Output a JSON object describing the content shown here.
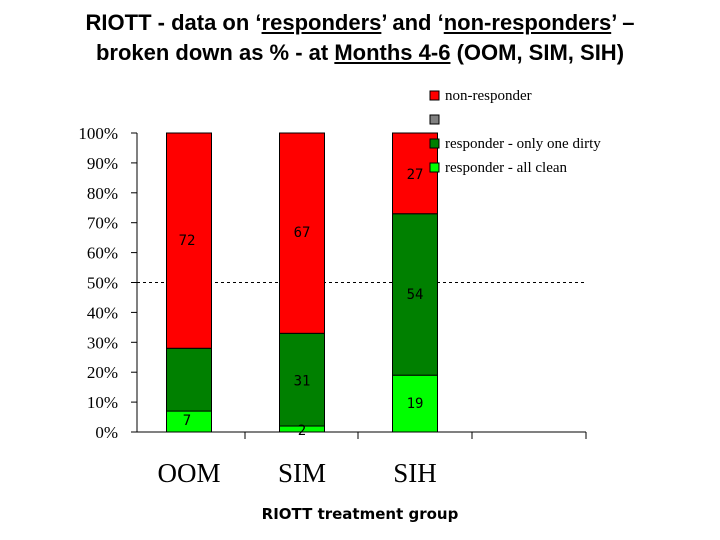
{
  "header": {
    "title_p1": "RIOTT - data on ‘",
    "title_u1": "responders",
    "title_p2": "’ and ‘",
    "title_u2": "non-responders",
    "title_p3": "’ –",
    "title_p4": "broken down as % - at ",
    "title_u3": "Months 4-6",
    "title_p5": " (OOM, SIM, SIH)"
  },
  "chart_data": {
    "type": "bar",
    "stacked": true,
    "title": "RIOTT - data on ‘responders’ and ‘non-responders’ – broken down as % - at Months 4-6 (OOM, SIM, SIH)",
    "xlabel": "RIOTT treatment group",
    "ylabel": "",
    "ylim": [
      0,
      100
    ],
    "yticks": [
      "0%",
      "10%",
      "20%",
      "30%",
      "40%",
      "50%",
      "60%",
      "70%",
      "80%",
      "90%",
      "100%"
    ],
    "categories": [
      "OOM",
      "SIM",
      "SIH"
    ],
    "reference_line": 50,
    "legend_position": "top-right",
    "series": [
      {
        "name": "responder - all clean",
        "color": "#00ff00",
        "values": [
          7,
          2,
          19
        ]
      },
      {
        "name": "responder - only one dirty",
        "color": "#008000",
        "values": [
          21,
          31,
          54
        ]
      },
      {
        "name": "",
        "color": "#808080",
        "values": [
          0,
          0,
          0
        ]
      },
      {
        "name": "non-responder",
        "color": "#ff0000",
        "values": [
          72,
          67,
          27
        ]
      }
    ],
    "data_labels": [
      {
        "category": "OOM",
        "series": "responder - all clean",
        "text": "7"
      },
      {
        "category": "OOM",
        "series": "non-responder",
        "text": "72"
      },
      {
        "category": "SIM",
        "series": "responder - all clean",
        "text": "2"
      },
      {
        "category": "SIM",
        "series": "responder - only one dirty",
        "text": "31"
      },
      {
        "category": "SIM",
        "series": "non-responder",
        "text": "67"
      },
      {
        "category": "SIH",
        "series": "responder - all clean",
        "text": "19"
      },
      {
        "category": "SIH",
        "series": "responder - only one dirty",
        "text": "54"
      },
      {
        "category": "SIH",
        "series": "non-responder",
        "text": "27"
      }
    ]
  }
}
